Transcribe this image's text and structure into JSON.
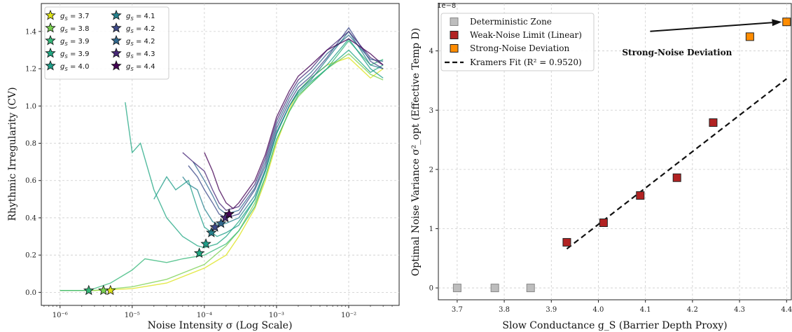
{
  "chart_data": [
    {
      "type": "line",
      "xlabel": "Noise Intensity σ (Log Scale)",
      "ylabel": "Rhythmic Irregularity (CV)",
      "xscale": "log",
      "xlim": [
        5.5e-07,
        0.05
      ],
      "ylim": [
        -0.07,
        1.55
      ],
      "xticks": [
        1e-06,
        1e-05,
        0.0001,
        0.001,
        0.01
      ],
      "xtick_labels": [
        "10⁻⁶",
        "10⁻⁵",
        "10⁻⁴",
        "10⁻³",
        "10⁻²"
      ],
      "yticks": [
        0.0,
        0.2,
        0.4,
        0.6,
        0.8,
        1.0,
        1.2,
        1.4
      ],
      "ytick_labels": [
        "0.0",
        "0.2",
        "0.4",
        "0.6",
        "0.8",
        "1.0",
        "1.2",
        "1.4"
      ],
      "grid": true,
      "legend_position": "top-left",
      "series": [
        {
          "name": "g_S = 3.7",
          "color": "#dde318",
          "x": [
            1e-06,
            3e-06,
            1e-05,
            3e-05,
            0.0001,
            0.0002,
            0.0003,
            0.0005,
            0.0007,
            0.001,
            0.0015,
            0.002,
            0.003,
            0.005,
            0.01,
            0.02,
            0.03
          ],
          "y": [
            0.01,
            0.01,
            0.02,
            0.05,
            0.13,
            0.2,
            0.3,
            0.45,
            0.6,
            0.8,
            0.98,
            1.08,
            1.15,
            1.22,
            1.26,
            1.15,
            1.2
          ],
          "star": [
            5e-06,
            0.01
          ]
        },
        {
          "name": "g_S = 3.8",
          "color": "#7ad151",
          "x": [
            1e-06,
            3e-06,
            1e-05,
            3e-05,
            0.0001,
            0.0002,
            0.0003,
            0.0005,
            0.0007,
            0.001,
            0.0015,
            0.002,
            0.003,
            0.005,
            0.01,
            0.02,
            0.03
          ],
          "y": [
            0.01,
            0.01,
            0.03,
            0.07,
            0.15,
            0.25,
            0.33,
            0.48,
            0.62,
            0.82,
            0.97,
            1.05,
            1.12,
            1.2,
            1.28,
            1.17,
            1.14
          ],
          "star": [
            4e-06,
            0.01
          ]
        },
        {
          "name": "g_S = 3.9",
          "color": "#35b779",
          "x": [
            1e-06,
            2.5e-06,
            5e-06,
            1e-05,
            1.5e-05,
            3e-05,
            5e-05,
            0.0001,
            0.0002,
            0.0003,
            0.0005,
            0.0007,
            0.001,
            0.0015,
            0.002,
            0.003,
            0.005,
            0.01,
            0.02,
            0.03
          ],
          "y": [
            0.01,
            0.01,
            0.05,
            0.12,
            0.18,
            0.16,
            0.18,
            0.2,
            0.26,
            0.33,
            0.46,
            0.62,
            0.82,
            0.97,
            1.06,
            1.12,
            1.2,
            1.35,
            1.22,
            1.25
          ],
          "star": [
            2.5e-06,
            0.01
          ]
        },
        {
          "name": "g_S = 3.9",
          "color": "#22a884",
          "x": [
            8e-06,
            1e-05,
            1.3e-05,
            2e-05,
            3e-05,
            5e-05,
            8e-05,
            0.0001,
            0.00015,
            0.0002,
            0.0003,
            0.0005,
            0.0007,
            0.001,
            0.0015,
            0.002,
            0.003,
            0.005,
            0.01,
            0.02,
            0.03
          ],
          "y": [
            1.02,
            0.75,
            0.8,
            0.55,
            0.4,
            0.3,
            0.25,
            0.24,
            0.26,
            0.3,
            0.38,
            0.5,
            0.65,
            0.85,
            1.0,
            1.07,
            1.13,
            1.2,
            1.3,
            1.18,
            1.22
          ],
          "star": [
            8.5e-05,
            0.21
          ]
        },
        {
          "name": "g_S = 4.0",
          "color": "#1f9e89",
          "x": [
            2e-05,
            3e-05,
            4e-05,
            6e-05,
            8e-05,
            0.0001,
            0.00015,
            0.0002,
            0.0003,
            0.0005,
            0.0007,
            0.001,
            0.0015,
            0.002,
            0.003,
            0.005,
            0.01,
            0.02,
            0.03
          ],
          "y": [
            0.5,
            0.62,
            0.55,
            0.6,
            0.45,
            0.35,
            0.3,
            0.32,
            0.36,
            0.5,
            0.65,
            0.85,
            1.0,
            1.08,
            1.15,
            1.22,
            1.36,
            1.2,
            1.15
          ],
          "star": [
            0.000105,
            0.26
          ]
        },
        {
          "name": "g_S = 4.1",
          "color": "#26828e",
          "x": [
            5e-05,
            6e-05,
            8e-05,
            0.0001,
            0.00013,
            0.00016,
            0.0002,
            0.0003,
            0.0005,
            0.0007,
            0.001,
            0.0015,
            0.002,
            0.003,
            0.005,
            0.01,
            0.02,
            0.03
          ],
          "y": [
            0.62,
            0.58,
            0.55,
            0.45,
            0.38,
            0.36,
            0.37,
            0.4,
            0.52,
            0.66,
            0.86,
            1.0,
            1.08,
            1.14,
            1.25,
            1.4,
            1.22,
            1.2
          ],
          "star": [
            0.000125,
            0.32
          ]
        },
        {
          "name": "g_S = 4.2",
          "color": "#3e4a89",
          "x": [
            6e-05,
            8e-05,
            0.0001,
            0.00013,
            0.00016,
            0.0002,
            0.0003,
            0.0005,
            0.0007,
            0.001,
            0.0015,
            0.002,
            0.003,
            0.005,
            0.01,
            0.02,
            0.03
          ],
          "y": [
            0.68,
            0.62,
            0.55,
            0.48,
            0.42,
            0.4,
            0.42,
            0.55,
            0.68,
            0.88,
            1.02,
            1.1,
            1.16,
            1.26,
            1.42,
            1.24,
            1.2
          ],
          "star": [
            0.00014,
            0.35
          ]
        },
        {
          "name": "g_S = 4.2",
          "color": "#31688e",
          "x": [
            7e-05,
            0.0001,
            0.00013,
            0.00016,
            0.0002,
            0.0003,
            0.0005,
            0.0007,
            0.001,
            0.0015,
            0.002,
            0.003,
            0.005,
            0.01,
            0.02,
            0.03
          ],
          "y": [
            0.7,
            0.6,
            0.52,
            0.45,
            0.42,
            0.44,
            0.56,
            0.7,
            0.9,
            1.04,
            1.12,
            1.18,
            1.28,
            1.38,
            1.25,
            1.24
          ],
          "star": [
            0.00017,
            0.37
          ]
        },
        {
          "name": "g_S = 4.3",
          "color": "#482878",
          "x": [
            5e-05,
            7e-05,
            0.0001,
            0.00013,
            0.00016,
            0.0002,
            0.0003,
            0.0005,
            0.0007,
            0.001,
            0.0015,
            0.002,
            0.003,
            0.005,
            0.01,
            0.02,
            0.03
          ],
          "y": [
            0.75,
            0.7,
            0.65,
            0.55,
            0.48,
            0.44,
            0.46,
            0.58,
            0.72,
            0.92,
            1.06,
            1.14,
            1.2,
            1.3,
            1.4,
            1.26,
            1.22
          ],
          "star": [
            0.000195,
            0.4
          ]
        },
        {
          "name": "g_S = 4.4",
          "color": "#440154",
          "x": [
            0.0001,
            0.00013,
            0.00016,
            0.0002,
            0.00025,
            0.0003,
            0.0005,
            0.0007,
            0.001,
            0.0015,
            0.002,
            0.003,
            0.005,
            0.01,
            0.02,
            0.03
          ],
          "y": [
            0.75,
            0.65,
            0.55,
            0.48,
            0.45,
            0.48,
            0.6,
            0.74,
            0.94,
            1.08,
            1.16,
            1.22,
            1.3,
            1.36,
            1.28,
            1.22
          ],
          "star": [
            0.00022,
            0.42
          ]
        }
      ],
      "legend_labels": [
        "g_S = 3.7",
        "g_S = 3.8",
        "g_S = 3.9",
        "g_S = 3.9",
        "g_S = 4.0",
        "g_S = 4.1",
        "g_S = 4.2",
        "g_S = 4.2",
        "g_S = 4.3",
        "g_S = 4.4"
      ]
    },
    {
      "type": "scatter",
      "xlabel": "Slow Conductance g_S (Barrier Depth Proxy)",
      "ylabel": "Optimal Noise Variance σ²_opt (Effective Temp D)",
      "y_offset_label": "1e−8",
      "xlim": [
        3.66,
        4.41
      ],
      "ylim": [
        -0.2,
        4.8
      ],
      "xticks": [
        3.7,
        3.8,
        3.9,
        4.0,
        4.1,
        4.2,
        4.3,
        4.4
      ],
      "xtick_labels": [
        "3.7",
        "3.8",
        "3.9",
        "4.0",
        "4.1",
        "4.2",
        "4.3",
        "4.4"
      ],
      "yticks": [
        0,
        1,
        2,
        3,
        4
      ],
      "ytick_labels": [
        "0",
        "1",
        "2",
        "3",
        "4"
      ],
      "grid": true,
      "legend_position": "top-left",
      "series": [
        {
          "name": "Deterministic Zone",
          "color": "#bdbdbd",
          "edge": "#888888",
          "x": [
            3.7,
            3.78,
            3.856
          ],
          "y": [
            0.0,
            0.0,
            0.0
          ]
        },
        {
          "name": "Weak-Noise Limit (Linear)",
          "color": "#b22222",
          "edge": "#222222",
          "x": [
            3.933,
            4.011,
            4.089,
            4.167,
            4.244
          ],
          "y": [
            0.77,
            1.1,
            1.56,
            1.86,
            2.79
          ]
        },
        {
          "name": "Strong-Noise Deviation",
          "color": "#ff8c00",
          "edge": "#222222",
          "x": [
            4.322,
            4.4
          ],
          "y": [
            4.24,
            4.49
          ]
        },
        {
          "name": "Kramers Fit (R² = 0.9520)",
          "color": "#111111",
          "style": "dashed",
          "x": [
            3.933,
            4.4
          ],
          "y": [
            0.66,
            3.53
          ]
        }
      ],
      "annotation": {
        "text": "Strong-Noise Deviation",
        "arrow_from": [
          4.11,
          4.33
        ],
        "arrow_to": [
          4.39,
          4.49
        ]
      }
    }
  ]
}
